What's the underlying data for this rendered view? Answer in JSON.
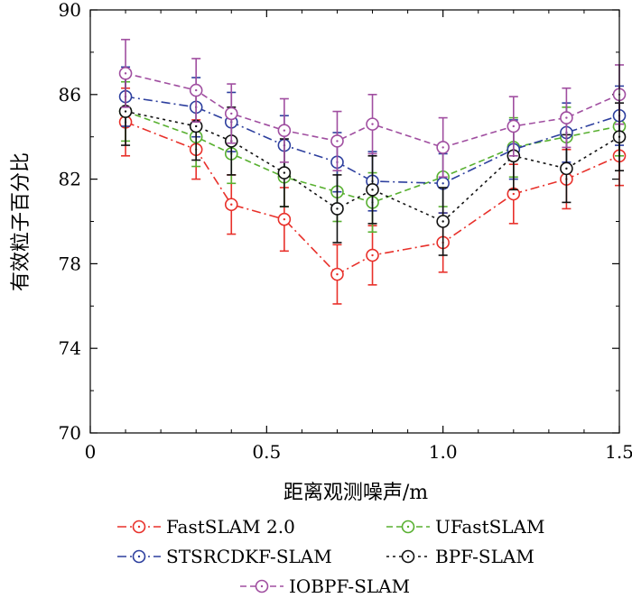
{
  "chart_data": {
    "type": "line",
    "xlabel": "距离观测噪声/m",
    "ylabel": "有效粒子百分比",
    "xlim": [
      0,
      1.5
    ],
    "ylim": [
      70,
      90
    ],
    "xticks": [
      0,
      0.5,
      1.0,
      1.5
    ],
    "xtick_labels": [
      "0",
      "0.5",
      "1.0",
      "1.5"
    ],
    "yticks": [
      70,
      74,
      78,
      82,
      86,
      90
    ],
    "ytick_labels": [
      "70",
      "74",
      "78",
      "82",
      "86",
      "90"
    ],
    "x": [
      0.1,
      0.3,
      0.4,
      0.55,
      0.7,
      0.8,
      1.0,
      1.2,
      1.35,
      1.5
    ],
    "series": [
      {
        "name": "FastSLAM 2.0",
        "color": "#e8302a",
        "dash": "dashdot",
        "values": [
          84.7,
          83.4,
          80.8,
          80.1,
          77.5,
          78.4,
          79.0,
          81.3,
          82.0,
          83.1
        ],
        "errors": [
          1.6,
          1.4,
          1.4,
          1.5,
          1.4,
          1.4,
          1.4,
          1.4,
          1.4,
          1.4
        ]
      },
      {
        "name": "UFastSLAM",
        "color": "#58b030",
        "dash": "dashed",
        "values": [
          85.2,
          84.0,
          83.2,
          82.1,
          81.4,
          80.9,
          82.1,
          83.5,
          84.0,
          84.5
        ],
        "errors": [
          1.4,
          1.4,
          1.4,
          1.4,
          1.4,
          1.4,
          1.4,
          1.4,
          1.4,
          1.4
        ]
      },
      {
        "name": "STSRCDKF-SLAM",
        "color": "#2d3f9e",
        "dash": "dashdot",
        "values": [
          85.9,
          85.4,
          84.7,
          83.6,
          82.8,
          81.9,
          81.8,
          83.4,
          84.2,
          85.0
        ],
        "errors": [
          1.4,
          1.4,
          1.4,
          1.4,
          1.4,
          1.4,
          1.4,
          1.4,
          1.4,
          1.4
        ]
      },
      {
        "name": "BPF-SLAM",
        "color": "#111111",
        "dash": "dotted",
        "values": [
          85.2,
          84.5,
          83.8,
          82.3,
          80.6,
          81.5,
          80.0,
          83.1,
          82.5,
          84.0
        ],
        "errors": [
          1.6,
          1.6,
          1.6,
          1.6,
          1.6,
          1.6,
          1.6,
          1.6,
          1.6,
          1.6
        ]
      },
      {
        "name": "IOBPF-SLAM",
        "color": "#a04ea0",
        "dash": "dashed",
        "values": [
          87.0,
          86.2,
          85.1,
          84.3,
          83.8,
          84.6,
          83.5,
          84.5,
          84.9,
          86.0
        ],
        "errors": [
          1.6,
          1.5,
          1.4,
          1.5,
          1.4,
          1.4,
          1.4,
          1.4,
          1.4,
          1.4
        ]
      }
    ]
  }
}
